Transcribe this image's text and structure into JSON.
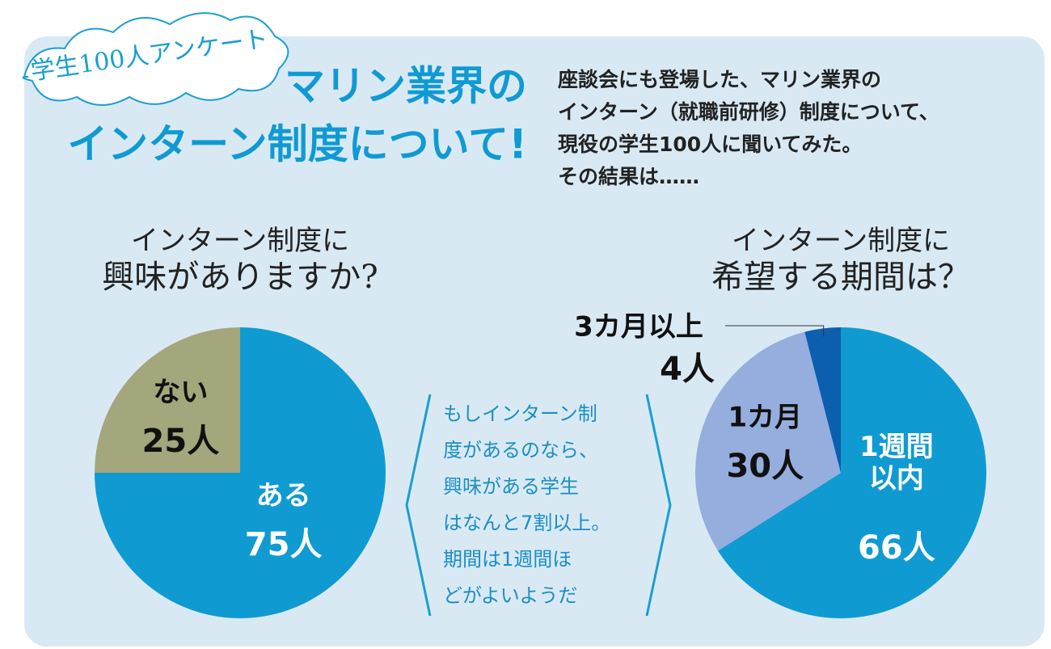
{
  "header": {
    "badge": "学生100人アンケート",
    "title_lines": [
      "マリン業界の",
      "インターン制度について!"
    ],
    "description_lines": [
      "座談会にも登場した、マリン業界の",
      "インターン（就職前研修）制度について、",
      "現役の学生100人に聞いてみた。",
      "その結果は……"
    ]
  },
  "note_lines": [
    "もしインターン制",
    "度があるのなら、",
    "興味がある学生",
    "はなんと7割以上。",
    "期間は1週間ほ",
    "どがよいようだ"
  ],
  "chart_data": [
    {
      "type": "pie",
      "title": [
        "インターン制度に",
        "興味がありますか?"
      ],
      "categories": [
        "ある",
        "ない"
      ],
      "values": [
        75,
        25
      ],
      "value_labels": [
        "75人",
        "25人"
      ],
      "colors": [
        "#0f9bd1",
        "#a4a67c"
      ]
    },
    {
      "type": "pie",
      "title": [
        "インターン制度に",
        "希望する期間は？"
      ],
      "categories": [
        "1週間以内",
        "1カ月",
        "3カ月以上"
      ],
      "values": [
        66,
        30,
        4
      ],
      "value_labels": [
        "66人",
        "30人",
        "4人"
      ],
      "colors": [
        "#0f9bd1",
        "#95aedd",
        "#0b5fae"
      ]
    }
  ]
}
